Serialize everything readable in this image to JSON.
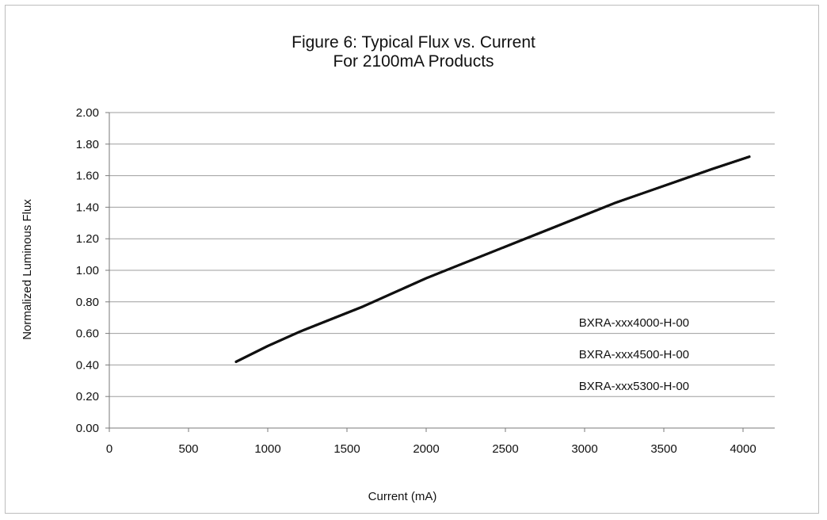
{
  "chart_data": {
    "type": "line",
    "title_line1": "Figure 6:  Typical Flux vs. Current",
    "title_line2": "For 2100mA Products",
    "xlabel": "Current (mA)",
    "ylabel": "Normalized Luminous Flux",
    "xlim": [
      0,
      4200
    ],
    "ylim": [
      0,
      2.0
    ],
    "xticks": [
      0,
      500,
      1000,
      1500,
      2000,
      2500,
      3000,
      3500,
      4000
    ],
    "yticks": [
      "0.00",
      "0.20",
      "0.40",
      "0.60",
      "0.80",
      "1.00",
      "1.20",
      "1.40",
      "1.60",
      "1.80",
      "2.00"
    ],
    "grid": "horizontal",
    "legend_position": "bottom-right",
    "series": [
      {
        "name": "BXRA-xxx4000-H-00",
        "x": [
          800,
          1000,
          1200,
          1400,
          1600,
          1800,
          2000,
          2200,
          2400,
          2600,
          2800,
          3000,
          3200,
          3400,
          3600,
          3800,
          4040
        ],
        "y": [
          0.42,
          0.52,
          0.61,
          0.69,
          0.77,
          0.86,
          0.95,
          1.03,
          1.11,
          1.19,
          1.27,
          1.35,
          1.43,
          1.5,
          1.57,
          1.64,
          1.72
        ]
      },
      {
        "name": "BXRA-xxx4500-H-00",
        "x": [
          800,
          1000,
          1200,
          1400,
          1600,
          1800,
          2000,
          2200,
          2400,
          2600,
          2800,
          3000,
          3200,
          3400,
          3600,
          3800,
          4040
        ],
        "y": [
          0.42,
          0.52,
          0.61,
          0.69,
          0.77,
          0.86,
          0.95,
          1.03,
          1.11,
          1.19,
          1.27,
          1.35,
          1.43,
          1.5,
          1.57,
          1.64,
          1.72
        ]
      },
      {
        "name": "BXRA-xxx5300-H-00",
        "x": [
          800,
          1000,
          1200,
          1400,
          1600,
          1800,
          2000,
          2200,
          2400,
          2600,
          2800,
          3000,
          3200,
          3400,
          3600,
          3800,
          4040
        ],
        "y": [
          0.42,
          0.52,
          0.61,
          0.69,
          0.77,
          0.86,
          0.95,
          1.03,
          1.11,
          1.19,
          1.27,
          1.35,
          1.43,
          1.5,
          1.57,
          1.64,
          1.72
        ]
      }
    ],
    "colors": {
      "line": "#111111",
      "grid": "#9e9e9e",
      "axis": "#7a7a7a"
    }
  }
}
